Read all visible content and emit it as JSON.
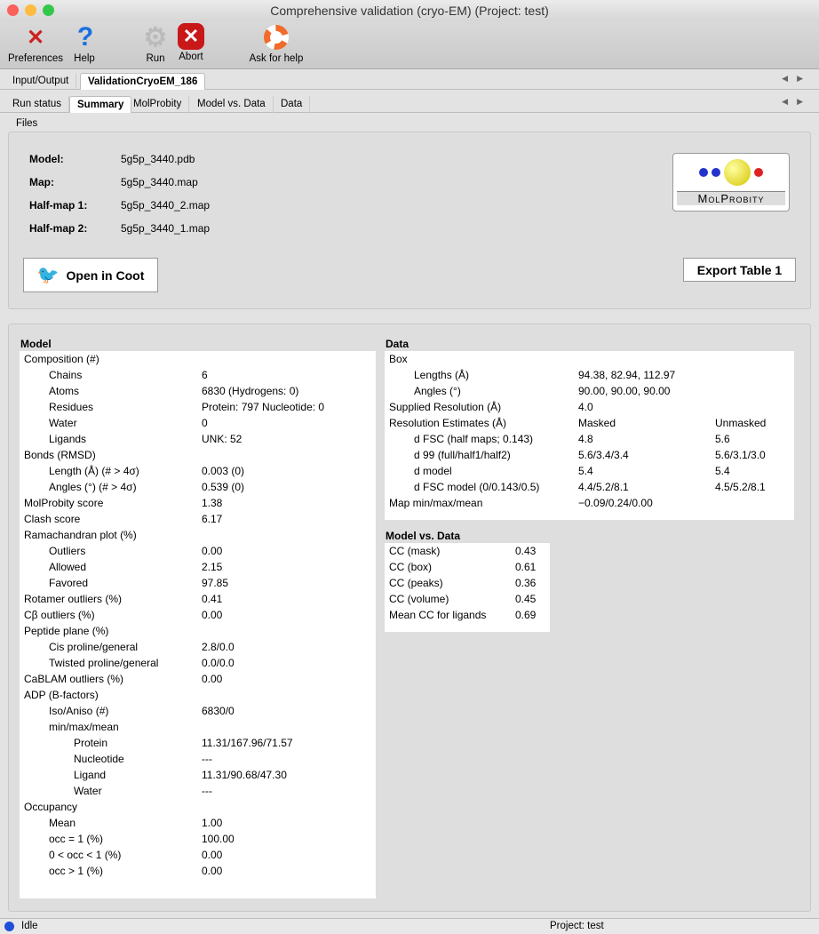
{
  "window": {
    "title": "Comprehensive validation (cryo-EM) (Project: test)"
  },
  "toolbar": [
    {
      "label": "Preferences",
      "icon": "preferences-icon"
    },
    {
      "label": "Help",
      "icon": "help-icon"
    },
    {
      "label": "Run",
      "icon": "run-gear-icon"
    },
    {
      "label": "Abort",
      "icon": "abort-icon"
    },
    {
      "label": "Ask for help",
      "icon": "lifebuoy-icon"
    }
  ],
  "tabs_outer": [
    "Input/Output",
    "ValidationCryoEM_186"
  ],
  "tabs_inner": [
    "Run status",
    "Summary",
    "MolProbity",
    "Model vs. Data",
    "Data"
  ],
  "files": {
    "title": "Files",
    "items": [
      {
        "label": "Model:",
        "value": "5g5p_3440.pdb"
      },
      {
        "label": "Map:",
        "value": "5g5p_3440.map"
      },
      {
        "label": "Half-map 1:",
        "value": "5g5p_3440_2.map"
      },
      {
        "label": "Half-map 2:",
        "value": "5g5p_3440_1.map"
      }
    ],
    "open_coot": "Open in Coot",
    "export": "Export Table 1",
    "logo": "MolProbity"
  },
  "model": {
    "title": "Model",
    "rows": [
      [
        "Composition (#)",
        "",
        0
      ],
      [
        "Chains",
        "6",
        1
      ],
      [
        "Atoms",
        "6830 (Hydrogens: 0)",
        1
      ],
      [
        "Residues",
        "Protein: 797 Nucleotide: 0",
        1
      ],
      [
        "Water",
        "0",
        1
      ],
      [
        "Ligands",
        "UNK: 52",
        1
      ],
      [
        "Bonds (RMSD)",
        "",
        0
      ],
      [
        "Length (Å) (# > 4σ)",
        "0.003 (0)",
        1
      ],
      [
        "Angles (°) (# > 4σ)",
        "0.539 (0)",
        1
      ],
      [
        "MolProbity score",
        "1.38",
        0
      ],
      [
        "Clash score",
        "6.17",
        0
      ],
      [
        "Ramachandran plot (%)",
        "",
        0
      ],
      [
        "Outliers",
        "0.00",
        1
      ],
      [
        "Allowed",
        "2.15",
        1
      ],
      [
        "Favored",
        "97.85",
        1
      ],
      [
        "Rotamer outliers (%)",
        "0.41",
        0
      ],
      [
        "Cβ outliers (%)",
        "0.00",
        0
      ],
      [
        "Peptide plane (%)",
        "",
        0
      ],
      [
        "Cis proline/general",
        "2.8/0.0",
        1
      ],
      [
        "Twisted proline/general",
        "0.0/0.0",
        1
      ],
      [
        "CaBLAM outliers (%)",
        "0.00",
        0
      ],
      [
        "ADP (B-factors)",
        "",
        0
      ],
      [
        "Iso/Aniso (#)",
        "6830/0",
        1
      ],
      [
        "min/max/mean",
        "",
        1
      ],
      [
        "Protein",
        "11.31/167.96/71.57",
        2
      ],
      [
        "Nucleotide",
        "---",
        2
      ],
      [
        "Ligand",
        "11.31/90.68/47.30",
        2
      ],
      [
        "Water",
        "---",
        2
      ],
      [
        "Occupancy",
        "",
        0
      ],
      [
        "Mean",
        "1.00",
        1
      ],
      [
        "occ = 1 (%)",
        "100.00",
        1
      ],
      [
        "0 < occ < 1 (%)",
        "0.00",
        1
      ],
      [
        "occ > 1 (%)",
        "0.00",
        1
      ]
    ]
  },
  "data": {
    "title": "Data",
    "rows": [
      [
        "Box",
        "",
        "",
        0
      ],
      [
        "Lengths (Å)",
        "94.38, 82.94, 112.97",
        "",
        1
      ],
      [
        "Angles (°)",
        "90.00, 90.00, 90.00",
        "",
        1
      ],
      [
        "Supplied Resolution (Å)",
        "4.0",
        "",
        0
      ],
      [
        "Resolution Estimates (Å)",
        "Masked",
        "Unmasked",
        0
      ],
      [
        "d FSC (half maps; 0.143)",
        "4.8",
        "5.6",
        1
      ],
      [
        "d 99 (full/half1/half2)",
        "5.6/3.4/3.4",
        "5.6/3.1/3.0",
        1
      ],
      [
        "d model",
        "5.4",
        "5.4",
        1
      ],
      [
        "d FSC model (0/0.143/0.5)",
        "4.4/5.2/8.1",
        "4.5/5.2/8.1",
        1
      ],
      [
        "Map min/max/mean",
        "−0.09/0.24/0.00",
        "",
        0
      ]
    ]
  },
  "model_vs_data": {
    "title": "Model vs. Data",
    "rows": [
      [
        "CC (mask)",
        "0.43"
      ],
      [
        "CC (box)",
        "0.61"
      ],
      [
        "CC (peaks)",
        "0.36"
      ],
      [
        "CC (volume)",
        "0.45"
      ],
      [
        "Mean CC for ligands",
        "0.69"
      ]
    ]
  },
  "status": {
    "state": "Idle",
    "project": "Project: test",
    "indicator_color": "#1f4fd8"
  }
}
